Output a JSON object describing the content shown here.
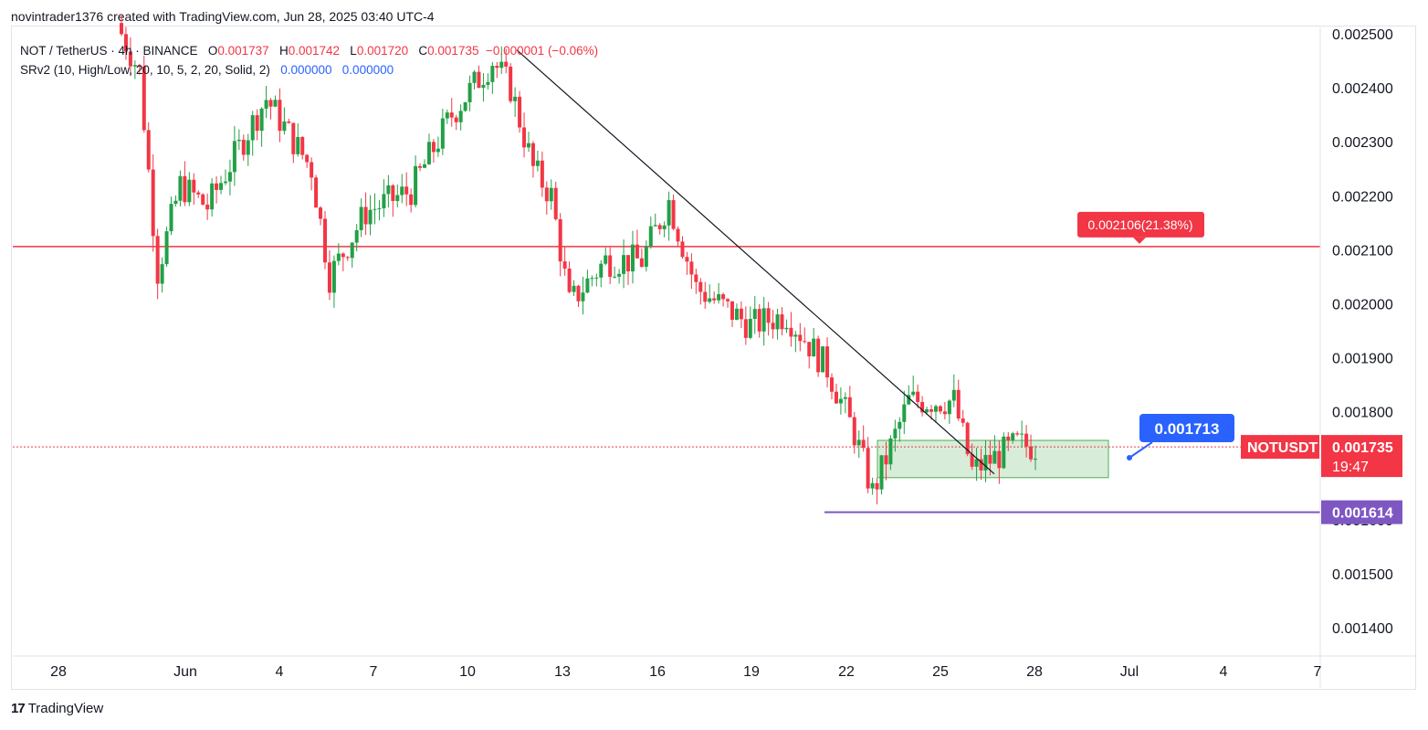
{
  "header": {
    "credit": "novintrader1376 created with TradingView.com, Jun 28, 2025 03:40 UTC-4"
  },
  "legend": {
    "title": "NOT / TetherUS · 4h · BINANCE",
    "o_label": "O",
    "o_value": "0.001737",
    "h_label": "H",
    "h_value": "0.001742",
    "l_label": "L",
    "l_value": "0.001720",
    "c_label": "C",
    "c_value": "0.001735",
    "change": "−0.000001 (−0.06%)",
    "indicator": "SRv2 (10, High/Low, 20, 10, 5, 2, 20, Solid, 2)",
    "ind_v1": "0.000000",
    "ind_v2": "0.000000"
  },
  "footer": {
    "logo_mark": "17",
    "logo_text": "TradingView"
  },
  "colors": {
    "up": "#22a046",
    "down": "#f23645",
    "resistance": "#f23645",
    "support": "#7e57c2",
    "target": "#2962ff",
    "zone": "#a5d6a7",
    "trendline": "#131722"
  },
  "chart_data": {
    "type": "candlestick",
    "symbol": "NOTUSDT",
    "timeframe": "4h",
    "y_ticks": [
      "0.002500",
      "0.002400",
      "0.002300",
      "0.002200",
      "0.002100",
      "0.002000",
      "0.001900",
      "0.001800",
      "0.001700",
      "0.001600",
      "0.001500",
      "0.001400"
    ],
    "ylim": [
      0.00135,
      0.00251
    ],
    "x_ticks": [
      "28",
      "Jun",
      "4",
      "7",
      "10",
      "13",
      "16",
      "19",
      "22",
      "25",
      "28",
      "Jul",
      "4",
      "7"
    ],
    "annotations": {
      "resistance": {
        "price": 0.002106,
        "label": "0.002106(21.38%)"
      },
      "support": {
        "price": 0.001614,
        "label": "0.001614"
      },
      "target": {
        "price": 0.001713,
        "label": "0.001713"
      },
      "current": {
        "price": 0.001735,
        "label": "0.001735",
        "symbol_label": "NOTUSDT",
        "countdown": "19:47"
      },
      "zone": {
        "top": 0.001747,
        "bottom": 0.001678
      },
      "trendline": {
        "from_price": 0.00247,
        "to_price": 0.001685
      }
    },
    "segments": [
      {
        "price": 0.0025,
        "n": 1
      },
      {
        "price": 0.00243,
        "n": 4
      },
      {
        "price": 0.00206,
        "n": 4
      },
      {
        "price": 0.00222,
        "n": 5
      },
      {
        "price": 0.00218,
        "n": 6
      },
      {
        "price": 0.00232,
        "n": 9
      },
      {
        "price": 0.00238,
        "n": 4
      },
      {
        "price": 0.00225,
        "n": 10
      },
      {
        "price": 0.00205,
        "n": 4
      },
      {
        "price": 0.00217,
        "n": 8
      },
      {
        "price": 0.00221,
        "n": 10
      },
      {
        "price": 0.00235,
        "n": 9
      },
      {
        "price": 0.00245,
        "n": 9
      },
      {
        "price": 0.0024,
        "n": 4
      },
      {
        "price": 0.00225,
        "n": 5
      },
      {
        "price": 0.0022,
        "n": 4
      },
      {
        "price": 0.002,
        "n": 4
      },
      {
        "price": 0.00208,
        "n": 8
      },
      {
        "price": 0.00208,
        "n": 8
      },
      {
        "price": 0.00219,
        "n": 6
      },
      {
        "price": 0.00203,
        "n": 6
      },
      {
        "price": 0.00196,
        "n": 12
      },
      {
        "price": 0.00198,
        "n": 8
      },
      {
        "price": 0.00188,
        "n": 9
      },
      {
        "price": 0.00176,
        "n": 6
      },
      {
        "price": 0.00165,
        "n": 4
      },
      {
        "price": 0.00182,
        "n": 8
      },
      {
        "price": 0.00182,
        "n": 10
      },
      {
        "price": 0.00169,
        "n": 4
      },
      {
        "price": 0.00174,
        "n": 10
      },
      {
        "price": 0.001735,
        "n": 4
      }
    ]
  }
}
